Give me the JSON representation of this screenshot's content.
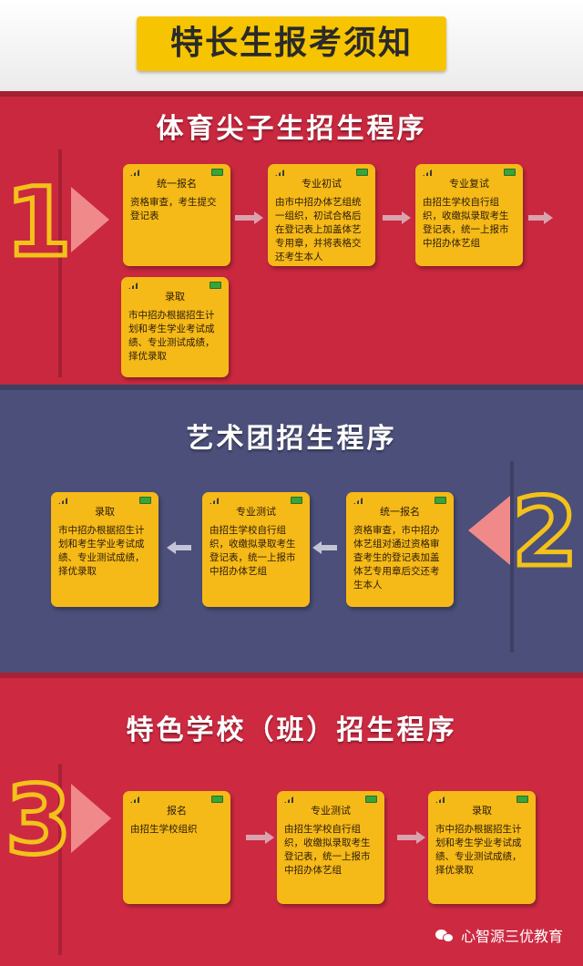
{
  "header": {
    "title": "特长生报考须知"
  },
  "sections": [
    {
      "number": "1",
      "title": "体育尖子生招生程序",
      "cards": [
        {
          "title": "统一报名",
          "body": "资格审查，考生提交登记表"
        },
        {
          "title": "专业初试",
          "body": "由市中招办体艺组统一组织，初试合格后在登记表上加盖体艺专用章，并将表格交还考生本人"
        },
        {
          "title": "专业复试",
          "body": "由招生学校自行组织，收缴拟录取考生登记表，统一上报市中招办体艺组"
        },
        {
          "title": "录取",
          "body": "市中招办根据招生计划和考生学业考试成绩、专业测试成绩，择优录取"
        }
      ]
    },
    {
      "number": "2",
      "title": "艺术团招生程序",
      "cards": [
        {
          "title": "统一报名",
          "body": "资格审查，市中招办体艺组对通过资格审查考生的登记表加盖体艺专用章后交还考生本人"
        },
        {
          "title": "专业测试",
          "body": "由招生学校自行组织，收缴拟录取考生登记表，统一上报市中招办体艺组"
        },
        {
          "title": "录取",
          "body": "市中招办根据招生计划和考生学业考试成绩、专业测试成绩，择优录取"
        }
      ]
    },
    {
      "number": "3",
      "title": "特色学校（班）招生程序",
      "cards": [
        {
          "title": "报名",
          "body": "由招生学校组织"
        },
        {
          "title": "专业测试",
          "body": "由招生学校自行组织，收缴拟录取考生登记表，统一上报市中招办体艺组"
        },
        {
          "title": "录取",
          "body": "市中招办根据招生计划和考生学业考试成绩、专业测试成绩，择优录取"
        }
      ]
    }
  ],
  "watermark": {
    "text": "心智源三优教育",
    "icon": "wechat-icon"
  },
  "colors": {
    "section1": "#c9283f",
    "section2": "#4b4f79",
    "section3": "#cd2a42",
    "card": "#f5ba18",
    "number": "#f3c21a"
  }
}
